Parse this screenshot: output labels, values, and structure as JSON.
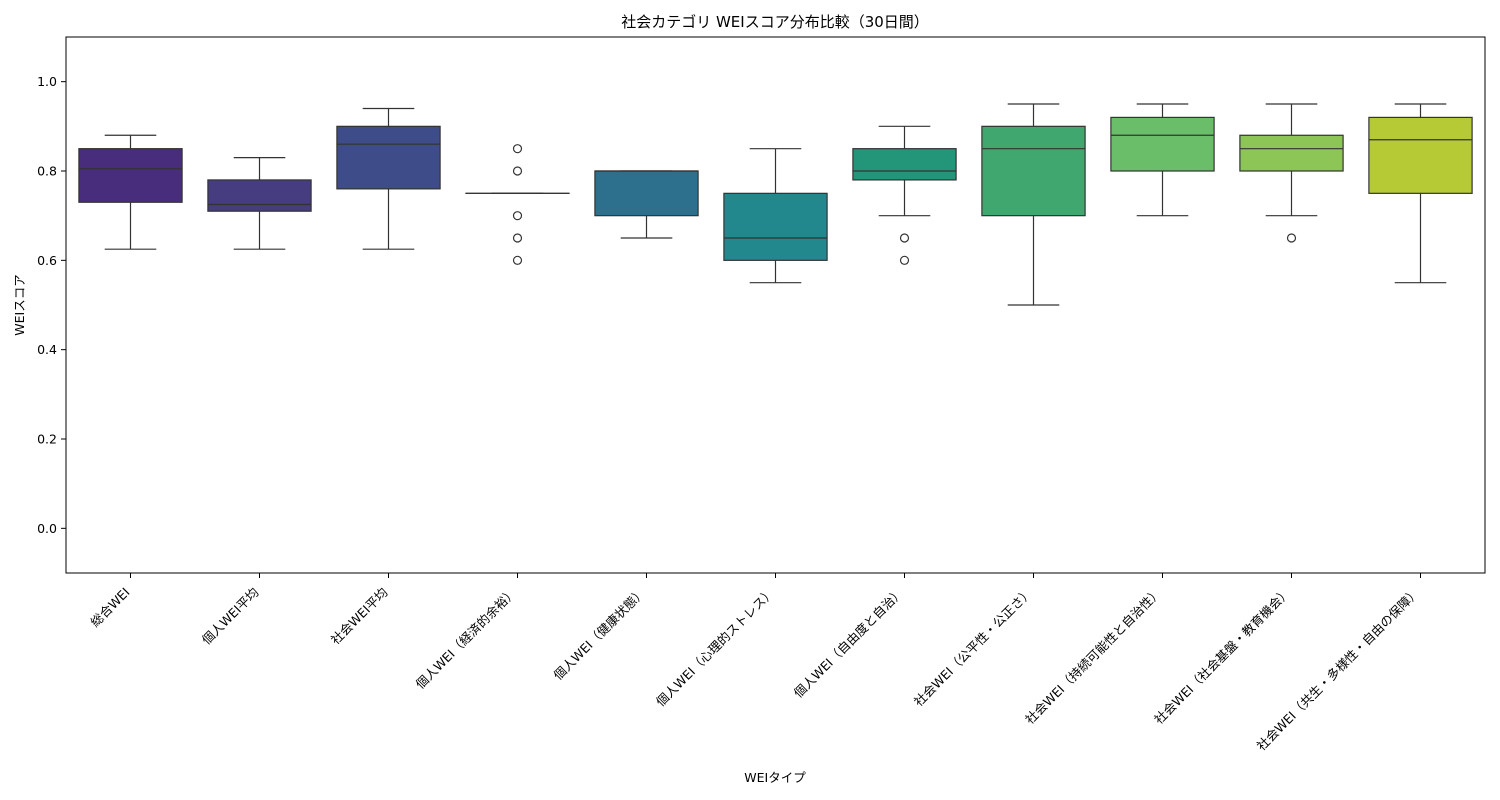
{
  "chart_data": {
    "type": "box",
    "title": "社会カテゴリ WEIスコア分布比較（30日間）",
    "xlabel": "WEIタイプ",
    "ylabel": "WEIスコア",
    "ylim": [
      -0.1,
      1.1
    ],
    "yticks": [
      "0.0",
      "0.2",
      "0.4",
      "0.6",
      "0.8",
      "1.0"
    ],
    "grid": false,
    "categories": [
      "総合WEI",
      "個人WEI平均",
      "社会WEI平均",
      "個人WEI（経済的余裕）",
      "個人WEI（健康状態）",
      "個人WEI（心理的ストレス）",
      "個人WEI（自由度と自治）",
      "社会WEI（公平性・公正さ）",
      "社会WEI（持続可能性と自治性）",
      "社会WEI（社会基盤・教育機会）",
      "社会WEI（共生・多様性・自由の保障）"
    ],
    "boxes": [
      {
        "whisker_low": 0.625,
        "q1": 0.73,
        "median": 0.805,
        "q3": 0.85,
        "whisker_high": 0.88,
        "outliers": [],
        "color": "#472d7b"
      },
      {
        "whisker_low": 0.625,
        "q1": 0.71,
        "median": 0.725,
        "q3": 0.78,
        "whisker_high": 0.83,
        "outliers": [],
        "color": "#463d80"
      },
      {
        "whisker_low": 0.625,
        "q1": 0.76,
        "median": 0.86,
        "q3": 0.9,
        "whisker_high": 0.94,
        "outliers": [],
        "color": "#3e4c89"
      },
      {
        "whisker_low": 0.75,
        "q1": 0.75,
        "median": 0.75,
        "q3": 0.75,
        "whisker_high": 0.75,
        "outliers": [
          0.85,
          0.8,
          0.7,
          0.65,
          0.6
        ],
        "color": "#35608d"
      },
      {
        "whisker_low": 0.65,
        "q1": 0.7,
        "median": 0.8,
        "q3": 0.8,
        "whisker_high": 0.8,
        "outliers": [],
        "color": "#2d708e"
      },
      {
        "whisker_low": 0.55,
        "q1": 0.6,
        "median": 0.65,
        "q3": 0.75,
        "whisker_high": 0.85,
        "outliers": [],
        "color": "#23888e"
      },
      {
        "whisker_low": 0.7,
        "q1": 0.78,
        "median": 0.8,
        "q3": 0.85,
        "whisker_high": 0.9,
        "outliers": [
          0.65,
          0.6
        ],
        "color": "#23967a"
      },
      {
        "whisker_low": 0.5,
        "q1": 0.7,
        "median": 0.85,
        "q3": 0.9,
        "whisker_high": 0.95,
        "outliers": [],
        "color": "#40a86e"
      },
      {
        "whisker_low": 0.7,
        "q1": 0.8,
        "median": 0.88,
        "q3": 0.92,
        "whisker_high": 0.95,
        "outliers": [],
        "color": "#6abe69"
      },
      {
        "whisker_low": 0.7,
        "q1": 0.8,
        "median": 0.85,
        "q3": 0.88,
        "whisker_high": 0.95,
        "outliers": [
          0.65
        ],
        "color": "#8dc556"
      },
      {
        "whisker_low": 0.55,
        "q1": 0.75,
        "median": 0.87,
        "q3": 0.92,
        "whisker_high": 0.95,
        "outliers": [],
        "color": "#b6ca36"
      }
    ]
  }
}
